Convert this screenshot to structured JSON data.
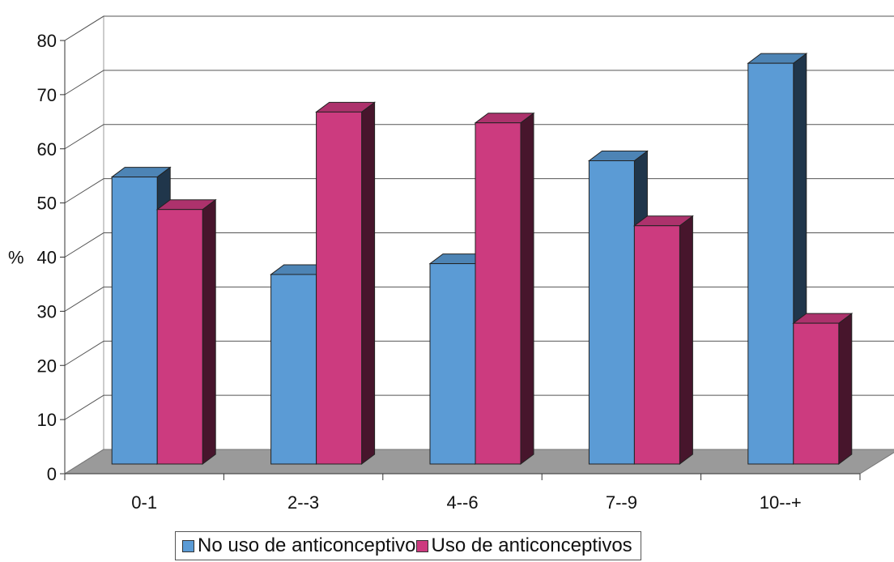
{
  "chart_data": {
    "type": "bar",
    "ylabel": "%",
    "ylim": [
      0,
      80
    ],
    "yticks": [
      "0",
      "10",
      "20",
      "30",
      "40",
      "50",
      "60",
      "70",
      "80"
    ],
    "categories": [
      "0-1",
      "2--3",
      "4--6",
      "7--9",
      "10--+"
    ],
    "series": [
      {
        "name": "No uso de anticonceptivo",
        "color": "#5b9bd5",
        "values": [
          53,
          35,
          37,
          56,
          74
        ]
      },
      {
        "name": "Uso de anticonceptivos",
        "color": "#cc3b7f",
        "values": [
          47,
          65,
          63,
          44,
          26
        ]
      }
    ],
    "grid": true,
    "style": "3d",
    "legend": "bottom"
  }
}
